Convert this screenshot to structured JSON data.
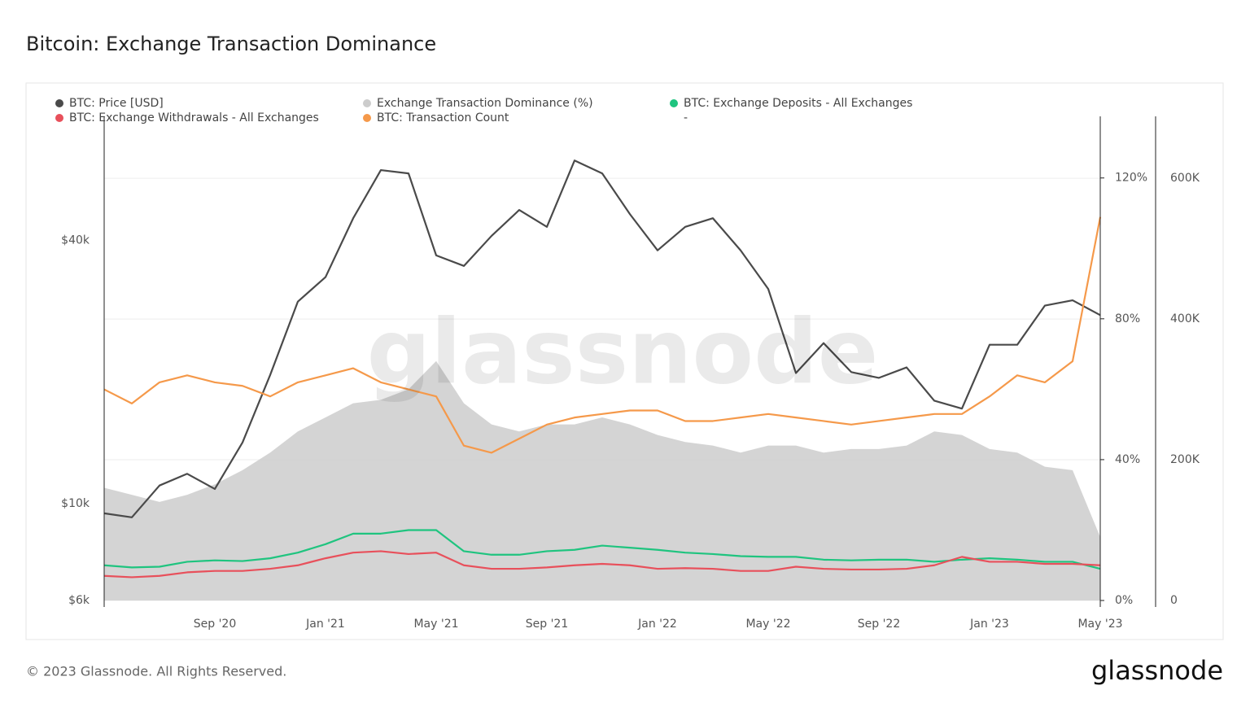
{
  "header": {
    "title": "Bitcoin: Exchange Transaction Dominance"
  },
  "chart_data": {
    "type": "line",
    "x": [
      "2020-05",
      "2020-06",
      "2020-07",
      "2020-08",
      "2020-09",
      "2020-10",
      "2020-11",
      "2020-12",
      "2021-01",
      "2021-02",
      "2021-03",
      "2021-04",
      "2021-05",
      "2021-06",
      "2021-07",
      "2021-08",
      "2021-09",
      "2021-10",
      "2021-11",
      "2021-12",
      "2022-01",
      "2022-02",
      "2022-03",
      "2022-04",
      "2022-05",
      "2022-06",
      "2022-07",
      "2022-08",
      "2022-09",
      "2022-10",
      "2022-11",
      "2022-12",
      "2023-01",
      "2023-02",
      "2023-03",
      "2023-04",
      "2023-05"
    ],
    "xlim": [
      "2020-05",
      "2023-05"
    ],
    "xticks": [
      {
        "value": "2020-09",
        "label": "Sep '20"
      },
      {
        "value": "2021-01",
        "label": "Jan '21"
      },
      {
        "value": "2021-05",
        "label": "May '21"
      },
      {
        "value": "2021-09",
        "label": "Sep '21"
      },
      {
        "value": "2022-01",
        "label": "Jan '22"
      },
      {
        "value": "2022-05",
        "label": "May '22"
      },
      {
        "value": "2022-09",
        "label": "Sep '22"
      },
      {
        "value": "2023-01",
        "label": "Jan '23"
      },
      {
        "value": "2023-05",
        "label": "May '23"
      }
    ],
    "ylim": [
      6000,
      77000
    ],
    "ylog": true,
    "yticks": [
      {
        "value": 6000,
        "label": "$6k"
      },
      {
        "value": 10000,
        "label": "$10k"
      },
      {
        "value": 40000,
        "label": "$40k"
      }
    ],
    "y2lim": [
      0,
      137.5
    ],
    "y2ticks": [
      {
        "value": 0,
        "label": "0%"
      },
      {
        "value": 40,
        "label": "40%"
      },
      {
        "value": 80,
        "label": "80%"
      },
      {
        "value": 120,
        "label": "120%"
      }
    ],
    "y3lim": [
      0,
      688000
    ],
    "y3ticks": [
      0,
      {
        "value": 200000,
        "label": "200K"
      },
      {
        "value": 400000,
        "label": "400K"
      },
      {
        "value": 600000,
        "label": "600K"
      }
    ],
    "grid": true,
    "series": [
      {
        "name": "Exchange Transaction Dominance (%)",
        "color": "#cccccc",
        "axis": "y2",
        "area": true,
        "values": [
          32,
          30,
          28,
          30,
          33,
          37,
          42,
          48,
          52,
          56,
          57,
          60,
          68,
          56,
          50,
          48,
          50,
          50,
          52,
          50,
          47,
          45,
          44,
          42,
          44,
          44,
          42,
          43,
          43,
          44,
          48,
          47,
          43,
          42,
          38,
          37,
          18
        ]
      },
      {
        "name": "BTC: Price [USD]",
        "color": "#4a4a4a",
        "axis": "y",
        "values": [
          9500,
          9300,
          11000,
          11700,
          10800,
          13800,
          19700,
          29000,
          33000,
          45000,
          58000,
          57000,
          37000,
          35000,
          41000,
          47000,
          43000,
          61000,
          57000,
          46000,
          38000,
          43000,
          45000,
          38000,
          31000,
          19900,
          23300,
          20000,
          19400,
          20500,
          17200,
          16500,
          23100,
          23100,
          28400,
          29200,
          27000
        ]
      },
      {
        "name": "BTC: Exchange Deposits - All Exchanges",
        "color": "#1fc47f",
        "axis": "y3",
        "values": [
          50000,
          47000,
          48000,
          55000,
          57000,
          56000,
          60000,
          68000,
          80000,
          95000,
          95000,
          100000,
          100000,
          70000,
          65000,
          65000,
          70000,
          72000,
          78000,
          75000,
          72000,
          68000,
          66000,
          63000,
          62000,
          62000,
          58000,
          57000,
          58000,
          58000,
          55000,
          58000,
          60000,
          58000,
          55000,
          55000,
          45000
        ]
      },
      {
        "name": "BTC: Exchange Withdrawals - All Exchanges",
        "color": "#e8505b",
        "axis": "y3",
        "values": [
          35000,
          33000,
          35000,
          40000,
          42000,
          42000,
          45000,
          50000,
          60000,
          68000,
          70000,
          66000,
          68000,
          50000,
          45000,
          45000,
          47000,
          50000,
          52000,
          50000,
          45000,
          46000,
          45000,
          42000,
          42000,
          48000,
          45000,
          44000,
          44000,
          45000,
          50000,
          62000,
          55000,
          55000,
          52000,
          52000,
          50000
        ]
      },
      {
        "name": "BTC: Transaction Count",
        "color": "#f5994a",
        "axis": "y3",
        "values": [
          300000,
          280000,
          310000,
          320000,
          310000,
          305000,
          290000,
          310000,
          320000,
          330000,
          310000,
          300000,
          290000,
          220000,
          210000,
          230000,
          250000,
          260000,
          265000,
          270000,
          270000,
          255000,
          255000,
          260000,
          265000,
          260000,
          255000,
          250000,
          255000,
          260000,
          265000,
          265000,
          290000,
          320000,
          310000,
          340000,
          545000
        ]
      }
    ],
    "legend_order": [
      1,
      0,
      2,
      3,
      4
    ],
    "legend_placeholder": "-"
  },
  "watermark": "glassnode",
  "footer": {
    "copyright": "© 2023 Glassnode. All Rights Reserved.",
    "logo": "glassnode"
  }
}
